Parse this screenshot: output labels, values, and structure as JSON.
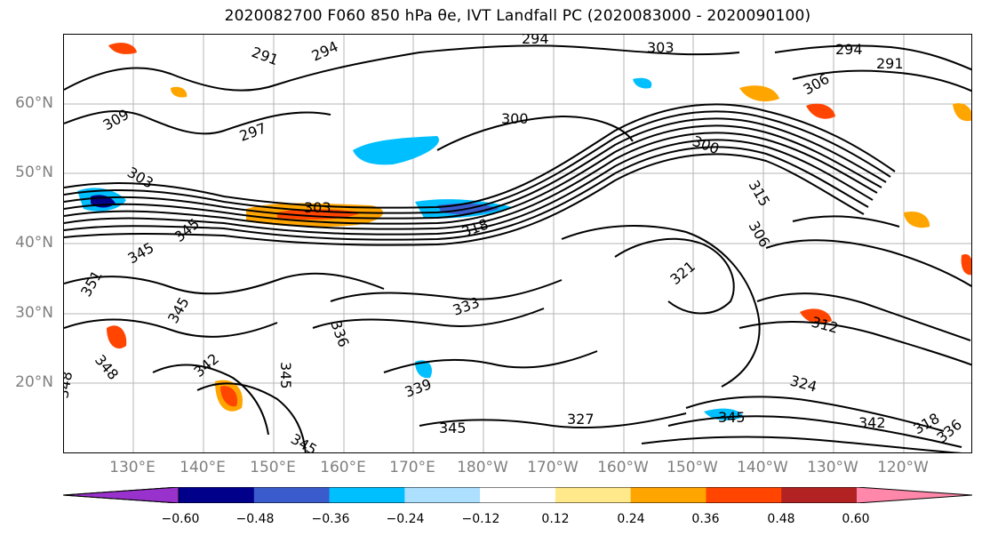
{
  "title": "2020082700 F060 850 hPa θe, IVT Landfall PC (2020083000 - 2020090100)",
  "lat_labels": [
    "60°N",
    "50°N",
    "40°N",
    "30°N",
    "20°N"
  ],
  "lon_labels": [
    "130°E",
    "140°E",
    "150°E",
    "160°E",
    "170°E",
    "180°W",
    "170°W",
    "160°W",
    "150°W",
    "140°W",
    "130°W",
    "120°W"
  ],
  "colorbar": {
    "colors": [
      "#9932CC",
      "#00008B",
      "#3A5BCB",
      "#00BFFF",
      "#ADDFFF",
      "#FFFFFF",
      "#FFE98A",
      "#FFA500",
      "#FF4500",
      "#B22222",
      "#FF88AA"
    ],
    "ticks": [
      "−0.60",
      "−0.48",
      "−0.36",
      "−0.24",
      "−0.12",
      "0.12",
      "0.24",
      "0.36",
      "0.48",
      "0.60"
    ]
  },
  "contour_labels": [
    "291",
    "294",
    "294",
    "303",
    "294",
    "291",
    "306",
    "309",
    "297",
    "300",
    "300",
    "303",
    "303",
    "318",
    "315",
    "306",
    "321",
    "345",
    "351",
    "345",
    "345",
    "345",
    "342",
    "348",
    "333",
    "336",
    "339",
    "345",
    "345",
    "327",
    "345",
    "324",
    "342",
    "318",
    "336",
    "312",
    "348"
  ]
}
